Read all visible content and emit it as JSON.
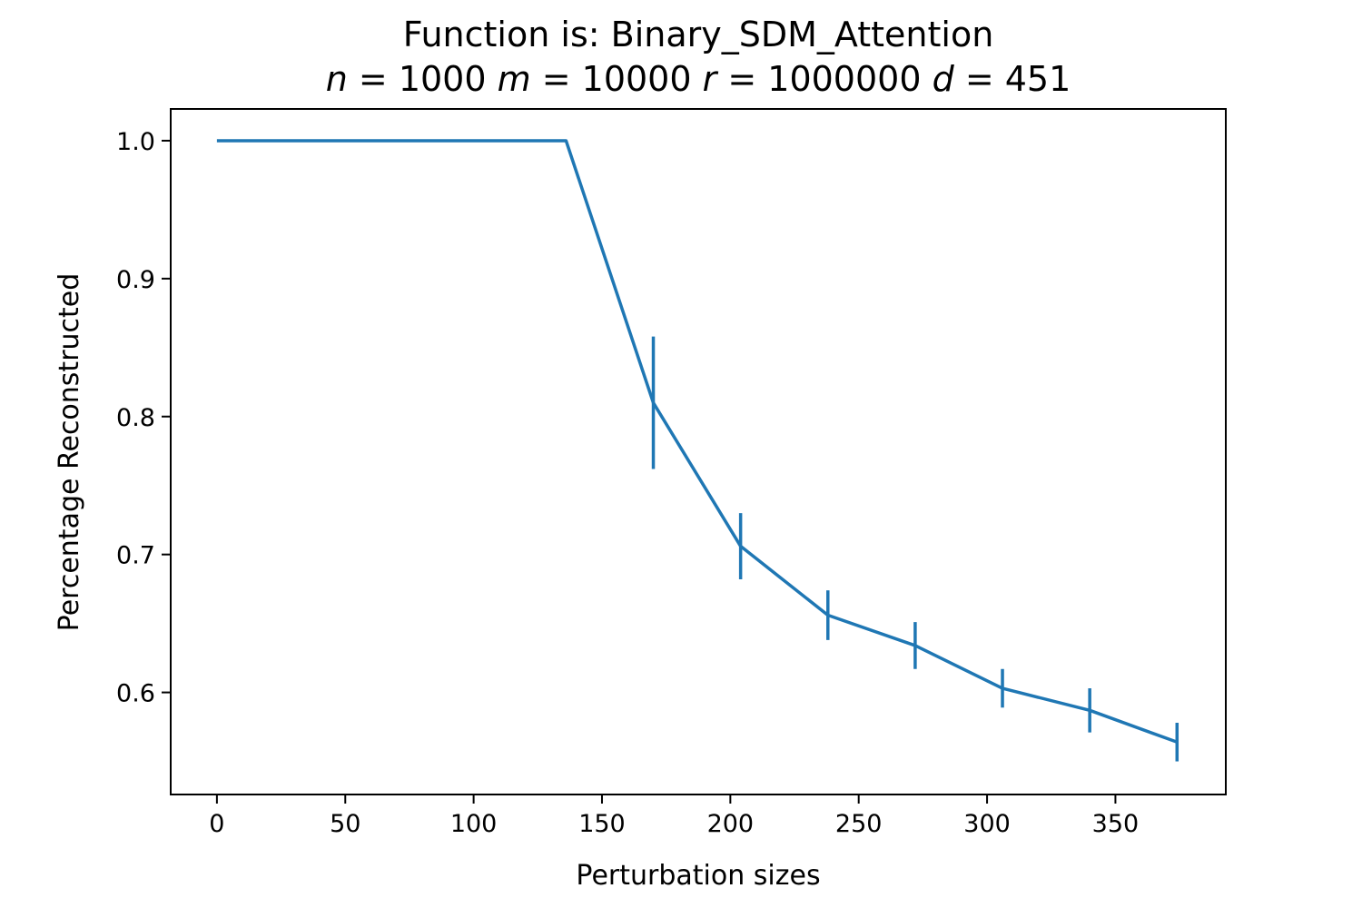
{
  "chart_data": {
    "type": "line",
    "title": "Function is: Binary_SDM_Attention",
    "subtitle": {
      "n": "1000",
      "m": "10000",
      "r": "1000000",
      "d": "451"
    },
    "xlabel": "Perturbation sizes",
    "ylabel": "Percentage Reconstructed",
    "xlim": [
      -18,
      393
    ],
    "ylim": [
      0.526,
      1.023
    ],
    "x_ticks": [
      0,
      50,
      100,
      150,
      200,
      250,
      300,
      350
    ],
    "y_ticks": [
      0.6,
      0.7,
      0.8,
      0.9,
      1.0
    ],
    "x_tick_labels": [
      "0",
      "50",
      "100",
      "150",
      "200",
      "250",
      "300",
      "350"
    ],
    "y_tick_labels": [
      "0.6",
      "0.7",
      "0.8",
      "0.9",
      "1.0"
    ],
    "grid": false,
    "color": "#1f77b4",
    "series": [
      {
        "x": [
          0,
          34,
          68,
          102,
          136,
          170,
          204,
          238,
          272,
          306,
          340,
          374
        ],
        "y": [
          1.0,
          1.0,
          1.0,
          1.0,
          1.0,
          0.81,
          0.706,
          0.656,
          0.634,
          0.603,
          0.587,
          0.564
        ],
        "yerr": [
          0,
          0,
          0,
          0,
          0,
          0.048,
          0.024,
          0.018,
          0.017,
          0.014,
          0.016,
          0.014
        ]
      }
    ]
  }
}
